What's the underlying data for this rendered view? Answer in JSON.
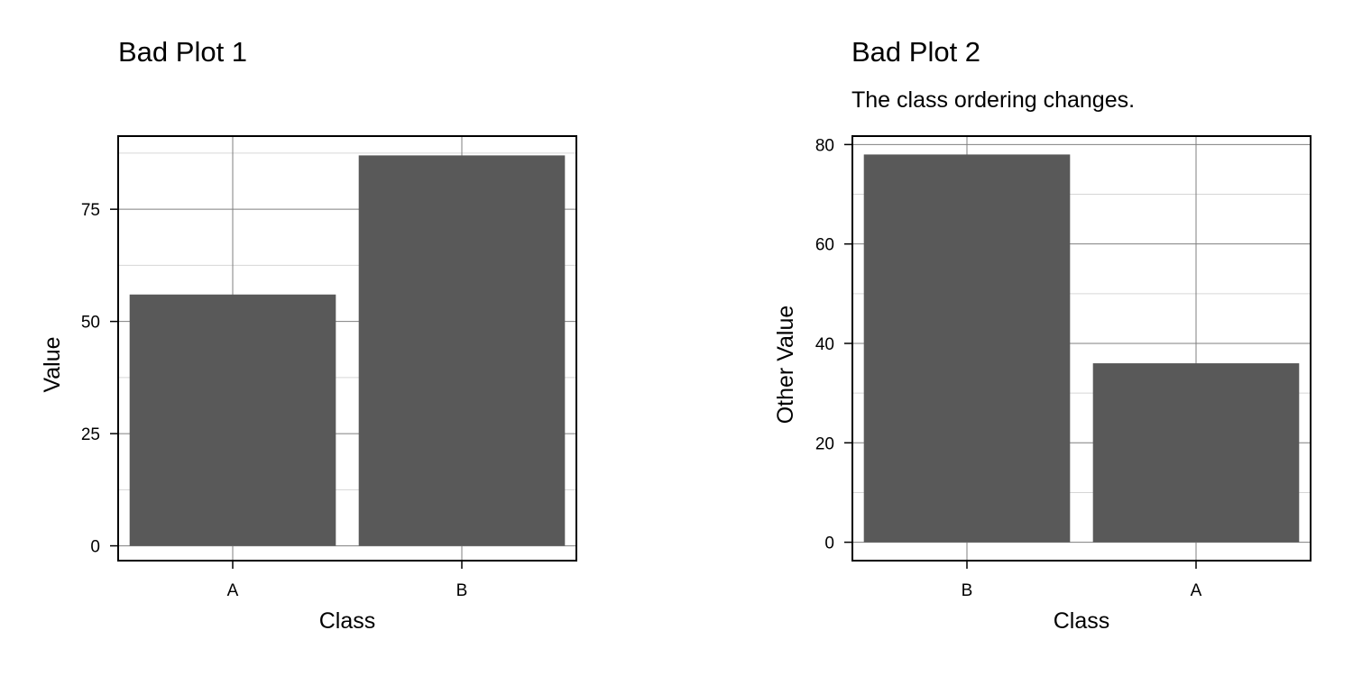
{
  "colors": {
    "bar": "#595959",
    "major_grid": "#7f7f7f",
    "minor_grid": "#d6d6d6",
    "panel_border": "#000000"
  },
  "chart_data": [
    {
      "type": "bar",
      "title": "Bad Plot 1",
      "subtitle": "",
      "xlabel": "Class",
      "ylabel": "Value",
      "categories": [
        "A",
        "B"
      ],
      "values": [
        56,
        87
      ],
      "ylim": [
        -3.3,
        91.3
      ],
      "yticks": [
        0,
        25,
        50,
        75
      ],
      "grid": true
    },
    {
      "type": "bar",
      "title": "Bad Plot 2",
      "subtitle": "The class ordering changes.",
      "xlabel": "Class",
      "ylabel": "Other Value",
      "categories": [
        "B",
        "A"
      ],
      "values": [
        78,
        36
      ],
      "ylim": [
        -3.7,
        81.7
      ],
      "yticks": [
        0,
        20,
        40,
        60,
        80
      ],
      "grid": true
    }
  ]
}
